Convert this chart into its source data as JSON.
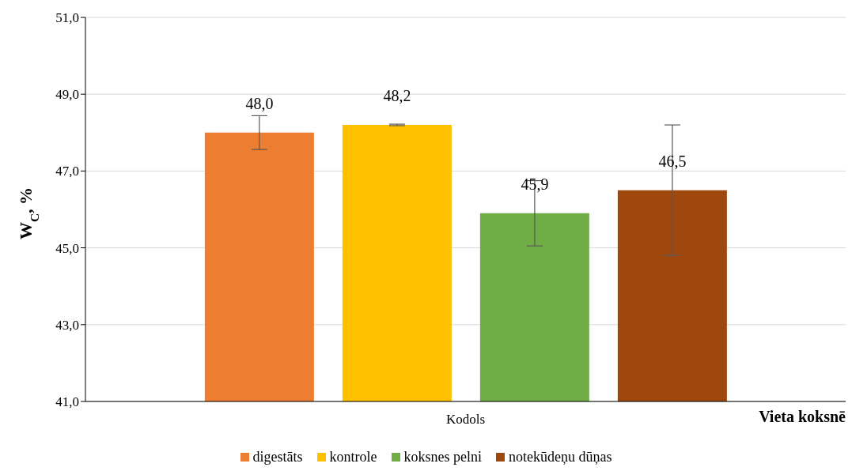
{
  "chart_data": {
    "type": "bar",
    "categories": [
      "Kodols"
    ],
    "xlabel": "Vieta koksnē",
    "ylabel": "W$_{C}$, %",
    "series": [
      {
        "name": "digestāts",
        "color": "#ed7d31",
        "values": [
          48.0
        ],
        "errors": [
          0.44
        ],
        "value_labels": [
          "48,0"
        ]
      },
      {
        "name": "kontrole",
        "color": "#ffc000",
        "values": [
          48.2
        ],
        "errors": [
          0.02
        ],
        "value_labels": [
          "48,2"
        ]
      },
      {
        "name": "koksnes pelni",
        "color": "#70ad47",
        "values": [
          45.9
        ],
        "errors": [
          0.85
        ],
        "value_labels": [
          "45,9"
        ]
      },
      {
        "name": "notekūdeņu dūņas",
        "color": "#9e480e",
        "values": [
          46.5
        ],
        "errors": [
          1.7
        ],
        "value_labels": [
          "46,5"
        ]
      }
    ],
    "ylim": [
      41,
      51
    ],
    "yticks": [
      {
        "value": 41,
        "label": "41,0"
      },
      {
        "value": 43,
        "label": "43,0"
      },
      {
        "value": 45,
        "label": "45,0"
      },
      {
        "value": 47,
        "label": "47,0"
      },
      {
        "value": 49,
        "label": "49,0"
      },
      {
        "value": 51,
        "label": "51,0"
      }
    ],
    "grid": "y",
    "legend": "bottom"
  }
}
